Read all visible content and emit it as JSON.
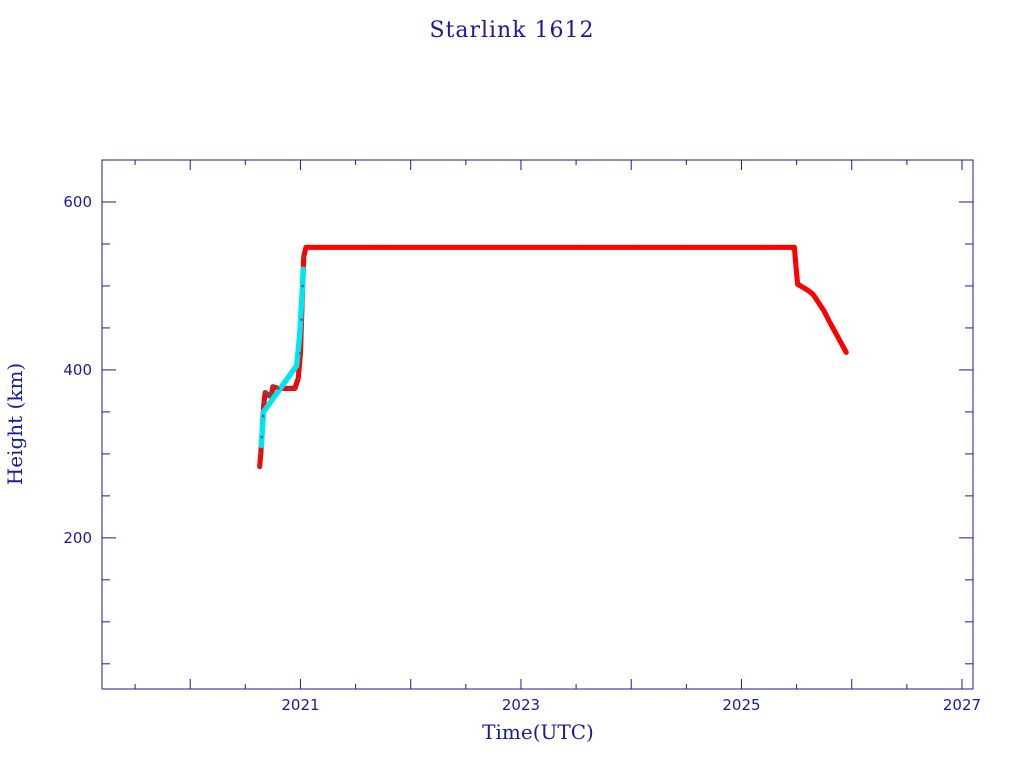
{
  "chart_data": {
    "type": "scatter",
    "title": "Starlink 1612",
    "xlabel": "Time(UTC)",
    "ylabel": "Height (km)",
    "xlim": [
      2019.2,
      2027.1
    ],
    "ylim": [
      20,
      650
    ],
    "x_ticks": [
      2021,
      2023,
      2025,
      2027
    ],
    "y_ticks": [
      200,
      400,
      600
    ],
    "grid": false,
    "colors": {
      "axis": "#1a1a9e",
      "primary_series": "#ff0000",
      "secondary_series": "#00e5ee",
      "marker_edge": "#2f6f6f"
    },
    "series": [
      {
        "values": [
          [
            2020.63,
            285
          ],
          [
            2020.64,
            300
          ],
          [
            2020.65,
            320
          ],
          [
            2020.66,
            345
          ],
          [
            2020.67,
            362
          ],
          [
            2020.68,
            373
          ],
          [
            2020.7,
            371
          ],
          [
            2020.72,
            369
          ],
          [
            2020.74,
            372
          ],
          [
            2020.75,
            380
          ],
          [
            2020.8,
            378
          ],
          [
            2020.9,
            378
          ],
          [
            2020.95,
            378
          ],
          [
            2020.98,
            390
          ],
          [
            2021.0,
            420
          ],
          [
            2021.01,
            460
          ],
          [
            2021.02,
            500
          ],
          [
            2021.03,
            535
          ],
          [
            2021.05,
            546
          ],
          [
            2021.2,
            546
          ],
          [
            2021.5,
            546
          ],
          [
            2021.8,
            546
          ],
          [
            2022.1,
            546
          ],
          [
            2022.4,
            546
          ],
          [
            2022.7,
            546
          ],
          [
            2023.0,
            546
          ],
          [
            2023.3,
            546
          ],
          [
            2023.6,
            546
          ],
          [
            2023.9,
            546
          ],
          [
            2024.2,
            546
          ],
          [
            2024.5,
            546
          ],
          [
            2024.8,
            546
          ],
          [
            2025.1,
            546
          ],
          [
            2025.4,
            546
          ],
          [
            2025.48,
            546
          ],
          [
            2025.49,
            530
          ],
          [
            2025.5,
            515
          ],
          [
            2025.51,
            502
          ],
          [
            2025.55,
            499
          ],
          [
            2025.6,
            495
          ],
          [
            2025.65,
            490
          ],
          [
            2025.7,
            480
          ],
          [
            2025.75,
            470
          ],
          [
            2025.8,
            457
          ],
          [
            2025.85,
            445
          ],
          [
            2025.9,
            433
          ],
          [
            2025.95,
            421
          ]
        ]
      },
      {
        "values": [
          [
            2020.645,
            310
          ],
          [
            2020.655,
            330
          ],
          [
            2020.665,
            350
          ],
          [
            2020.965,
            405
          ],
          [
            2020.985,
            430
          ],
          [
            2020.995,
            445
          ],
          [
            2021.005,
            470
          ],
          [
            2021.015,
            490
          ],
          [
            2021.025,
            520
          ]
        ]
      }
    ]
  }
}
